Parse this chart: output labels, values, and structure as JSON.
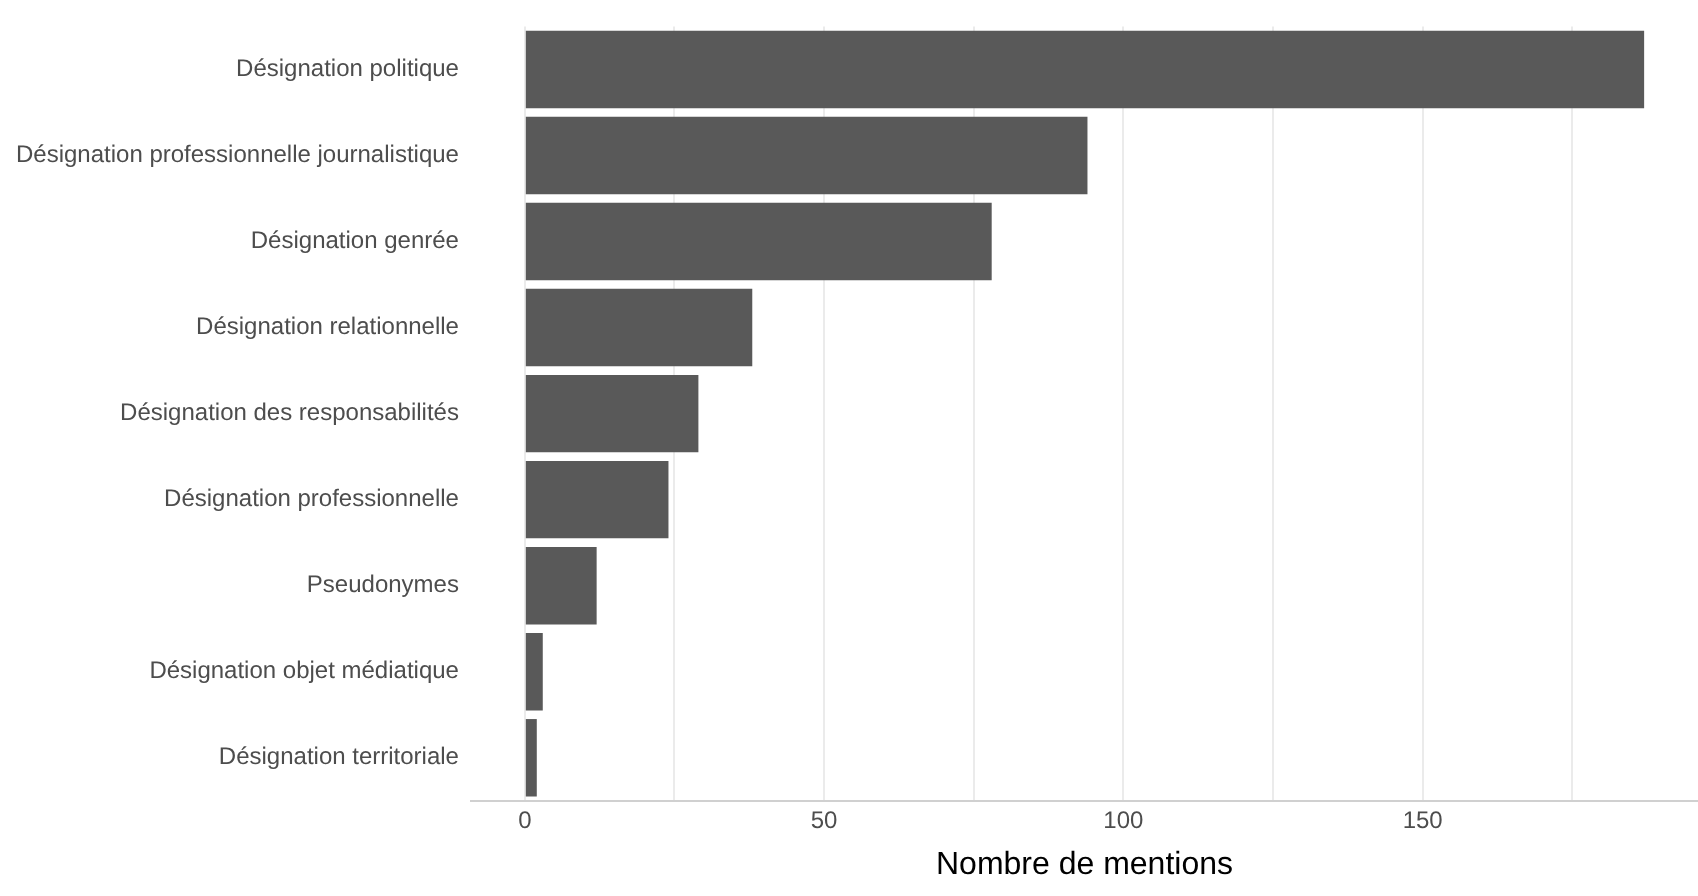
{
  "chart_data": {
    "type": "bar",
    "orientation": "horizontal",
    "xlabel": "Nombre de mentions",
    "categories": [
      "Désignation politique",
      "Désignation professionnelle journalistique",
      "Désignation genrée",
      "Désignation relationnelle",
      "Désignation des responsabilités",
      "Désignation professionnelle",
      "Pseudonymes",
      "Désignation objet médiatique",
      "Désignation territoriale"
    ],
    "values": [
      187,
      94,
      78,
      38,
      29,
      24,
      12,
      3,
      2
    ],
    "color": "#595959",
    "xlim": [
      -9,
      196
    ],
    "xticks": [
      0,
      {
        "value": 25,
        "label": null
      },
      50,
      {
        "value": 75,
        "label": null
      },
      100,
      {
        "value": 125,
        "label": null
      },
      150,
      {
        "value": 175,
        "label": null
      }
    ],
    "grid": "x",
    "legend": false
  }
}
